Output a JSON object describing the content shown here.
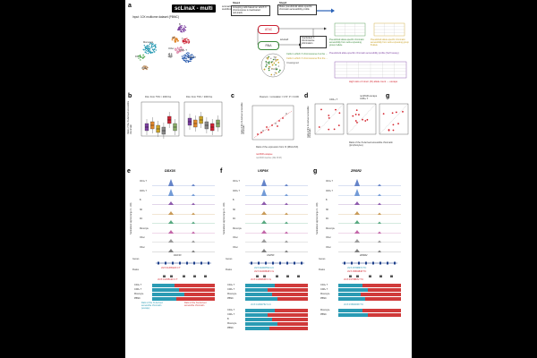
{
  "figure": {
    "panel_labels": [
      "a",
      "b",
      "c",
      "d",
      "e",
      "f",
      "g"
    ],
    "a": {
      "logo": "scLinaX - multi",
      "workflow_label": "scLinaX multi workflow",
      "input_label": "Input: 10X multiome dataset (PBMC)",
      "step1": "Step1",
      "step1_text": "Grouping cells based on which X chromosome is inactivated (scLinaX)",
      "step2": "Step2",
      "step2_text": "Make pseudobulk allele-specific chromatin accessibility profile",
      "atac": "ATAC",
      "rna": "RNA",
      "scLinaX": "scLinaX",
      "inactivated": "Inactivated X chromosome information",
      "cluster_labels": [
        "B",
        "NK",
        "T",
        "Monocyte",
        "DC",
        "CD4+ T",
        "CD8+ T",
        "Other",
        "Other"
      ],
      "legend": [
        "Cells in which X chromosome A is the ...",
        "Cells in which X chromosome B is the ...",
        "Unassigned"
      ],
      "ref_alt": [
        "REF",
        "ALT"
      ],
      "group_a": "Pseudobulk allele-specific chromatin accessibility from cells expressing group A allele",
      "group_b": "Pseudobulk allele-specific chromatin accessibility from cells expressing group B allele",
      "profile_title": "Pseudobulk allele-specific chromatin accessibility profile (Xa/Xi assay)",
      "highlight": "High ratio of minor (Xi) allele count → escape",
      "table_rows": [
        "SNP1",
        "SNP2",
        "SNP3",
        "SNP4"
      ]
    },
    "b": {
      "ylabel": "Ratio of the Xi-derived accessible chromatin",
      "title_left": "Dist. from TSS > 2000 bp",
      "title_right": "Dist. from TSS < 2000 bp"
    },
    "c": {
      "stats": "Pearson: r correlation = 0.57, P = 0.006",
      "ylabel": "Ratio of the Xi-derived accessible chromatin",
      "xlabel": "Ratio of the expression from Xi (RNA ASX)",
      "legend": [
        "nonPAR escapee",
        "nonPAR inactive (DE FFM)"
      ]
    },
    "d": {
      "titles": [
        "CD4+ T",
        "nonPAR escape\nCD8+ T",
        "B"
      ],
      "ylabel": "Ratio of the Xi-derived accessible chromatin",
      "xlabel": "Ratio of the Xi-derived accessible chromatin (lymphocytes)"
    },
    "genes": [
      {
        "panel": "e",
        "gene": "DDX3X",
        "peak_label": "chrX:41335120 C:T",
        "bottom_label": "chrX:41335120 C:T",
        "tracks": [
          "CD4+ T",
          "CD8+ T",
          "B",
          "NK",
          "DC",
          "Monocyte",
          "Other",
          "Other"
        ]
      },
      {
        "panel": "f",
        "gene": "USP9X",
        "peak_label": "chrX:41093762 G:C",
        "peak_label2": "chrX:41093648 C:G",
        "bottom_label": "chrX:41093648 C:G",
        "bottom_label2": "chrX:41093762 G:C",
        "tracks": [
          "CD4+ T",
          "CD8+ T",
          "B",
          "NK",
          "DC",
          "Monocyte",
          "Other",
          "Other"
        ]
      },
      {
        "panel": "g",
        "gene": "ZRSR2",
        "peak_label": "chrX:15798672 T:C",
        "peak_label2": "chrX:15804848 T:C",
        "bottom_label": "chrX:15798672 T:C",
        "bottom_label2": "chrX:15804848 T:C",
        "tracks": [
          "CD4+ T",
          "CD8+ T",
          "B",
          "NK",
          "DC",
          "Monocyte",
          "Other",
          "Other"
        ]
      }
    ],
    "track_side": {
      "ylabel": "Normalized signal (range 0 - 100)",
      "genes": "Genes",
      "peaks": "Peaks"
    },
    "e_bottom_rows": [
      "CD4+ T",
      "CD8+ T",
      "Monocyte",
      "PBMC"
    ],
    "f_bottom_rows_1": [
      "CD4+ T",
      "CD8+ T",
      "Monocyte",
      "PBMC"
    ],
    "f_bottom_rows_2": [
      "CD4+ T",
      "CD8+ T",
      "B",
      "Monocyte",
      "PBMC"
    ],
    "g_bottom_rows_1": [
      "CD4+ T",
      "CD8+ T",
      "Monocyte",
      "PBMC"
    ],
    "g_bottom_rows_2": [
      "Monocyte",
      "PBMC"
    ],
    "bottom_legend_xi": "Ratio of the Xi-derived accessible chromatin (escape)",
    "bottom_legend_xa": "Ratio of the Xa-derived accessible chromatin",
    "colors": {
      "xa": "#d03a3a",
      "xi": "#2a9bb4",
      "red": "#d4202a",
      "purple": "#7b3fa0"
    }
  }
}
